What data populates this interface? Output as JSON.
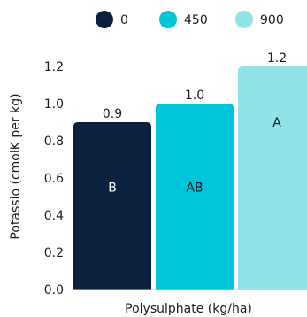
{
  "chart_data": {
    "type": "bar",
    "categories": [
      "0",
      "450",
      "900"
    ],
    "values": [
      0.9,
      1.0,
      1.2
    ],
    "value_labels": [
      "0.9",
      "1.0",
      "1.2"
    ],
    "group_letters": [
      "B",
      "AB",
      "A"
    ],
    "colors": [
      "#0a2240",
      "#00c4d8",
      "#90e3e6"
    ],
    "letter_colors": [
      "#ffffff",
      "#1a1a1a",
      "#1a1a1a"
    ],
    "legend": {
      "placement": "top",
      "entries": [
        {
          "label": "0",
          "color": "#0a2240"
        },
        {
          "label": "450",
          "color": "#00c4d8"
        },
        {
          "label": "900",
          "color": "#90e3e6"
        }
      ]
    },
    "title": "",
    "xlabel": "Polysulphate (kg/ha)",
    "ylabel": "Potassio (cmolK per kg)",
    "ylim": [
      0,
      1.2
    ],
    "yticks": [
      "0.0",
      "0.2",
      "0.4",
      "0.6",
      "0.8",
      "1.0",
      "1.2"
    ],
    "grid": false
  }
}
